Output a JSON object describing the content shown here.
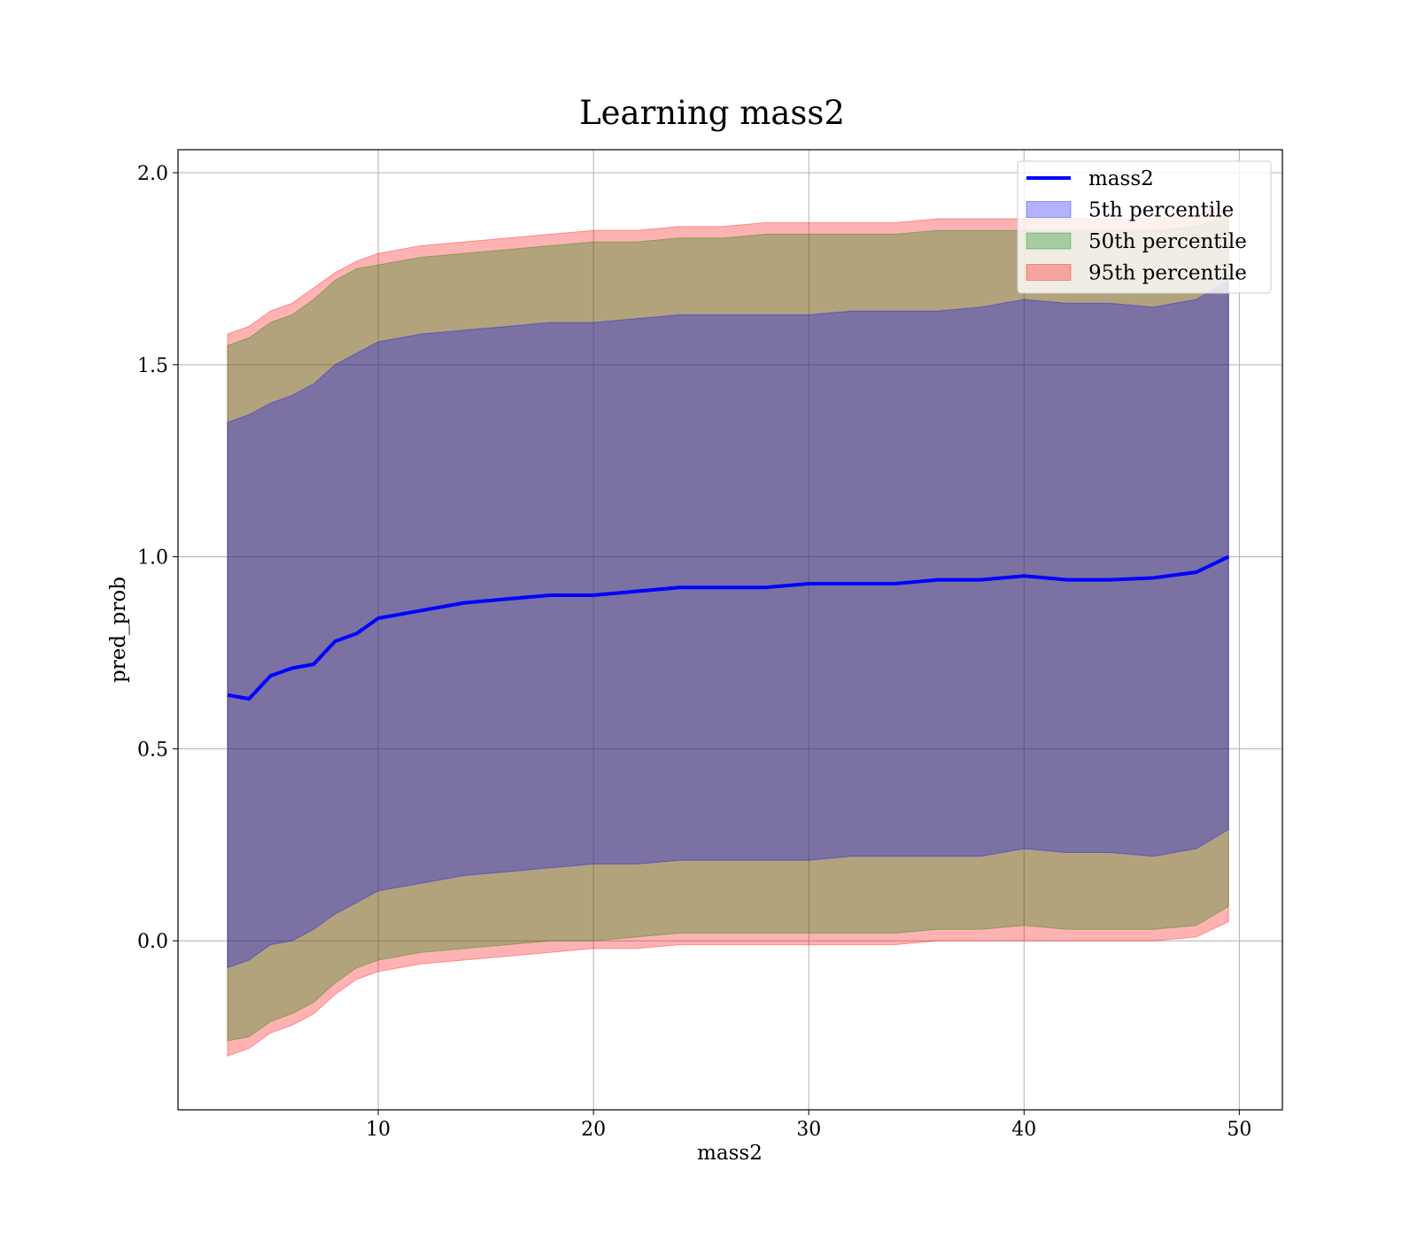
{
  "chart_data": {
    "type": "area",
    "title": "Learning mass2",
    "xlabel": "mass2",
    "ylabel": "pred_prob",
    "xlim": [
      0.7,
      52.0
    ],
    "ylim": [
      -0.44,
      2.06
    ],
    "xticks": [
      10,
      20,
      30,
      40,
      50
    ],
    "yticks": [
      0.0,
      0.5,
      1.0,
      1.5,
      2.0
    ],
    "xtick_labels": [
      "10",
      "20",
      "30",
      "40",
      "50"
    ],
    "ytick_labels": [
      "0.0",
      "0.5",
      "1.0",
      "1.5",
      "2.0"
    ],
    "grid": true,
    "legend_position": "top-right",
    "x": [
      3,
      4,
      5,
      6,
      7,
      8,
      9,
      10,
      12,
      14,
      16,
      18,
      20,
      22,
      24,
      26,
      28,
      30,
      32,
      34,
      36,
      38,
      40,
      42,
      44,
      46,
      48,
      49.5
    ],
    "series": [
      {
        "name": "mass2",
        "kind": "line",
        "color": "#0000ff",
        "values": [
          0.64,
          0.63,
          0.69,
          0.71,
          0.72,
          0.78,
          0.8,
          0.84,
          0.86,
          0.88,
          0.89,
          0.9,
          0.9,
          0.91,
          0.92,
          0.92,
          0.92,
          0.93,
          0.93,
          0.93,
          0.94,
          0.94,
          0.95,
          0.94,
          0.94,
          0.945,
          0.96,
          1.0
        ]
      },
      {
        "name": "5th percentile",
        "kind": "band",
        "color": "#0000ff",
        "upper": [
          1.35,
          1.37,
          1.4,
          1.42,
          1.45,
          1.5,
          1.53,
          1.56,
          1.58,
          1.59,
          1.6,
          1.61,
          1.61,
          1.62,
          1.63,
          1.63,
          1.63,
          1.63,
          1.64,
          1.64,
          1.64,
          1.65,
          1.67,
          1.66,
          1.66,
          1.65,
          1.67,
          1.72
        ],
        "lower": [
          -0.07,
          -0.05,
          -0.01,
          0.0,
          0.03,
          0.07,
          0.1,
          0.13,
          0.15,
          0.17,
          0.18,
          0.19,
          0.2,
          0.2,
          0.21,
          0.21,
          0.21,
          0.21,
          0.22,
          0.22,
          0.22,
          0.22,
          0.24,
          0.23,
          0.23,
          0.22,
          0.24,
          0.29
        ]
      },
      {
        "name": "50th percentile",
        "kind": "band",
        "color": "#008000",
        "upper": [
          1.55,
          1.57,
          1.61,
          1.63,
          1.67,
          1.72,
          1.75,
          1.76,
          1.78,
          1.79,
          1.8,
          1.81,
          1.82,
          1.82,
          1.83,
          1.83,
          1.84,
          1.84,
          1.84,
          1.84,
          1.85,
          1.85,
          1.85,
          1.85,
          1.85,
          1.85,
          1.86,
          1.89
        ],
        "lower": [
          -0.26,
          -0.25,
          -0.21,
          -0.19,
          -0.16,
          -0.11,
          -0.07,
          -0.05,
          -0.03,
          -0.02,
          -0.01,
          0.0,
          0.0,
          0.01,
          0.02,
          0.02,
          0.02,
          0.02,
          0.02,
          0.02,
          0.03,
          0.03,
          0.04,
          0.03,
          0.03,
          0.03,
          0.04,
          0.09
        ]
      },
      {
        "name": "95th percentile",
        "kind": "band",
        "color": "#ff0000",
        "upper": [
          1.58,
          1.6,
          1.64,
          1.66,
          1.7,
          1.74,
          1.77,
          1.79,
          1.81,
          1.82,
          1.83,
          1.84,
          1.85,
          1.85,
          1.86,
          1.86,
          1.87,
          1.87,
          1.87,
          1.87,
          1.88,
          1.88,
          1.88,
          1.88,
          1.88,
          1.88,
          1.89,
          1.92
        ],
        "lower": [
          -0.3,
          -0.28,
          -0.24,
          -0.22,
          -0.19,
          -0.14,
          -0.1,
          -0.08,
          -0.06,
          -0.05,
          -0.04,
          -0.03,
          -0.02,
          -0.02,
          -0.01,
          -0.01,
          -0.01,
          -0.01,
          -0.01,
          -0.01,
          0.0,
          0.0,
          0.0,
          0.0,
          0.0,
          0.0,
          0.01,
          0.05
        ]
      }
    ]
  }
}
